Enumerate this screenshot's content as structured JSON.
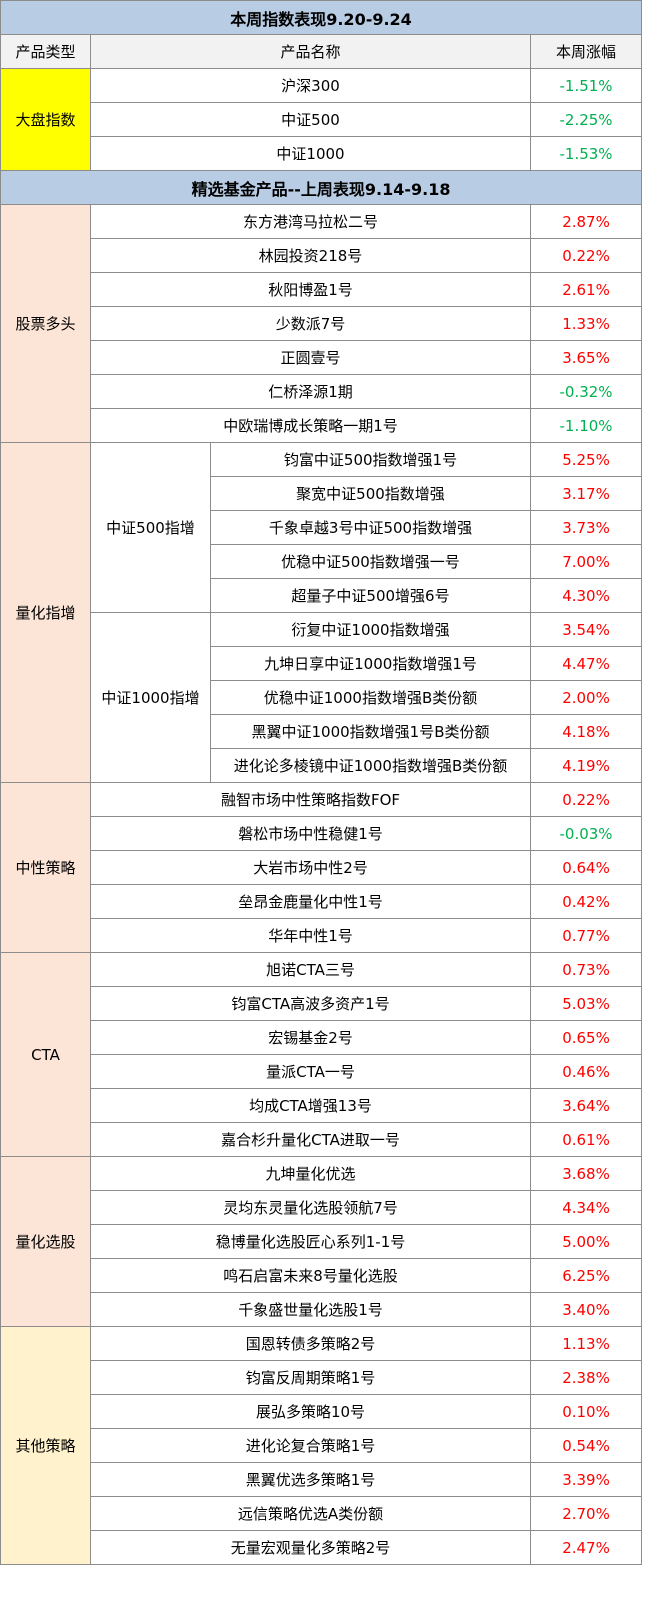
{
  "colors": {
    "positive": "#ff0000",
    "negative": "#00b050",
    "title_bg": "#b8cce4",
    "category_bg": "#fce4d6",
    "index_bg": "#ffff00",
    "other_bg": "#fff2cc"
  },
  "index_section": {
    "title": "本周指数表现9.20-9.24",
    "headers": {
      "type": "产品类型",
      "name": "产品名称",
      "change": "本周涨幅"
    },
    "category": "大盘指数",
    "rows": [
      {
        "name": "沪深300",
        "change": "-1.51%"
      },
      {
        "name": "中证500",
        "change": "-2.25%"
      },
      {
        "name": "中证1000",
        "change": "-1.53%"
      }
    ]
  },
  "fund_section": {
    "title": "精选基金产品--上周表现9.14-9.18",
    "stock_long": {
      "category": "股票多头",
      "rows": [
        {
          "name": "东方港湾马拉松二号",
          "change": "2.87%"
        },
        {
          "name": "林园投资218号",
          "change": "0.22%"
        },
        {
          "name": "秋阳博盈1号",
          "change": "2.61%"
        },
        {
          "name": "少数派7号",
          "change": "1.33%"
        },
        {
          "name": "正圆壹号",
          "change": "3.65%"
        },
        {
          "name": "仁桥泽源1期",
          "change": "-0.32%"
        },
        {
          "name": "中欧瑞博成长策略一期1号",
          "change": "-1.10%"
        }
      ]
    },
    "quant_index": {
      "category": "量化指增",
      "csi500": {
        "label": "中证500指增",
        "rows": [
          {
            "name": "钧富中证500指数增强1号",
            "change": "5.25%"
          },
          {
            "name": "聚宽中证500指数增强",
            "change": "3.17%"
          },
          {
            "name": "千象卓越3号中证500指数增强",
            "change": "3.73%"
          },
          {
            "name": "优稳中证500指数增强一号",
            "change": "7.00%"
          },
          {
            "name": "超量子中证500增强6号",
            "change": "4.30%"
          }
        ]
      },
      "csi1000": {
        "label": "中证1000指增",
        "rows": [
          {
            "name": "衍复中证1000指数增强",
            "change": "3.54%"
          },
          {
            "name": "九坤日享中证1000指数增强1号",
            "change": "4.47%"
          },
          {
            "name": "优稳中证1000指数增强B类份额",
            "change": "2.00%"
          },
          {
            "name": "黑翼中证1000指数增强1号B类份额",
            "change": "4.18%"
          },
          {
            "name": "进化论多棱镜中证1000指数增强B类份额",
            "change": "4.19%"
          }
        ]
      }
    },
    "market_neutral": {
      "category": "中性策略",
      "rows": [
        {
          "name": "融智市场中性策略指数FOF",
          "change": "0.22%"
        },
        {
          "name": "磐松市场中性稳健1号",
          "change": "-0.03%"
        },
        {
          "name": "大岩市场中性2号",
          "change": "0.64%"
        },
        {
          "name": "垒昂金鹿量化中性1号",
          "change": "0.42%"
        },
        {
          "name": "华年中性1号",
          "change": "0.77%"
        }
      ]
    },
    "cta": {
      "category": "CTA",
      "rows": [
        {
          "name": "旭诺CTA三号",
          "change": "0.73%"
        },
        {
          "name": "钧富CTA高波多资产1号",
          "change": "5.03%"
        },
        {
          "name": "宏锡基金2号",
          "change": "0.65%"
        },
        {
          "name": "量派CTA一号",
          "change": "0.46%"
        },
        {
          "name": "均成CTA增强13号",
          "change": "3.64%"
        },
        {
          "name": "嘉合杉升量化CTA进取一号",
          "change": "0.61%"
        }
      ]
    },
    "quant_stock": {
      "category": "量化选股",
      "rows": [
        {
          "name": "九坤量化优选",
          "change": "3.68%"
        },
        {
          "name": "灵均东灵量化选股领航7号",
          "change": "4.34%"
        },
        {
          "name": "稳博量化选股匠心系列1-1号",
          "change": "5.00%"
        },
        {
          "name": "鸣石启富未来8号量化选股",
          "change": "6.25%"
        },
        {
          "name": "千象盛世量化选股1号",
          "change": "3.40%"
        }
      ]
    },
    "other": {
      "category": "其他策略",
      "rows": [
        {
          "name": "国恩转债多策略2号",
          "change": "1.13%"
        },
        {
          "name": "钧富反周期策略1号",
          "change": "2.38%"
        },
        {
          "name": "展弘多策略10号",
          "change": "0.10%"
        },
        {
          "name": "进化论复合策略1号",
          "change": "0.54%"
        },
        {
          "name": "黑翼优选多策略1号",
          "change": "3.39%"
        },
        {
          "name": "远信策略优选A类份额",
          "change": "2.70%"
        },
        {
          "name": "无量宏观量化多策略2号",
          "change": "2.47%"
        }
      ]
    }
  }
}
